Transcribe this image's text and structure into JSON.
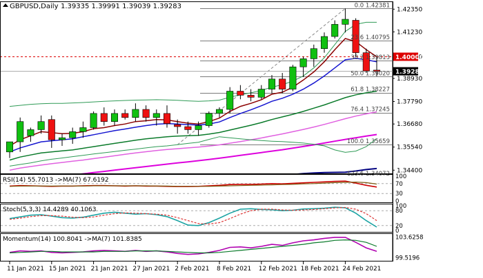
{
  "header": {
    "symbol": "GBPUSD,Daily",
    "ohlc": "1.39335 1.39991 1.39039 1.39283"
  },
  "colors": {
    "bull": "#10c010",
    "bear": "#ee1111",
    "ma_fast": "#8b0000",
    "ma_mid": "#1515d0",
    "ma_slow": "#0a7a2a",
    "ma_magenta1": "#e060e0",
    "ma_magenta2": "#dd00dd",
    "ma_navy": "#000080",
    "bb": "#2e9a55",
    "fib": "#7a7a7a",
    "price_tag": "#dd0000",
    "rsi_line": "#cc0000",
    "rsi_ma": "#7a5a10",
    "stoch_main": "#1aa3a3",
    "stoch_signal": "#dd3333",
    "momentum_line": "#b000b0",
    "momentum_ma": "#0a7a2a"
  },
  "chart_data": {
    "type": "candlestick",
    "symbol": "GBPUSD",
    "timeframe": "Daily",
    "y_ticks": [
      "1.42350",
      "1.41230",
      "1.40000",
      "1.38930",
      "1.37790",
      "1.36680",
      "1.35540",
      "1.34400"
    ],
    "ylim": [
      1.3424,
      1.427
    ],
    "x_labels": [
      "11 Jan 2021",
      "15 Jan 2021",
      "21 Jan 2021",
      "27 Jan 2021",
      "2 Feb 2021",
      "8 Feb 2021",
      "12 Feb 2021",
      "18 Feb 2021",
      "24 Feb 2021"
    ],
    "x_label_bars": [
      0,
      4,
      8,
      12,
      16,
      20,
      24,
      28,
      32
    ],
    "candles": [
      {
        "o": 1.353,
        "h": 1.358,
        "l": 1.35,
        "c": 1.358
      },
      {
        "o": 1.358,
        "h": 1.37,
        "l": 1.353,
        "c": 1.368
      },
      {
        "o": 1.361,
        "h": 1.365,
        "l": 1.358,
        "c": 1.364
      },
      {
        "o": 1.364,
        "h": 1.371,
        "l": 1.362,
        "c": 1.368
      },
      {
        "o": 1.369,
        "h": 1.371,
        "l": 1.355,
        "c": 1.359
      },
      {
        "o": 1.359,
        "h": 1.362,
        "l": 1.356,
        "c": 1.36
      },
      {
        "o": 1.36,
        "h": 1.365,
        "l": 1.357,
        "c": 1.363
      },
      {
        "o": 1.363,
        "h": 1.368,
        "l": 1.36,
        "c": 1.365
      },
      {
        "o": 1.365,
        "h": 1.373,
        "l": 1.364,
        "c": 1.372
      },
      {
        "o": 1.372,
        "h": 1.375,
        "l": 1.366,
        "c": 1.368
      },
      {
        "o": 1.368,
        "h": 1.374,
        "l": 1.366,
        "c": 1.372
      },
      {
        "o": 1.372,
        "h": 1.374,
        "l": 1.369,
        "c": 1.37
      },
      {
        "o": 1.37,
        "h": 1.377,
        "l": 1.368,
        "c": 1.374
      },
      {
        "o": 1.374,
        "h": 1.376,
        "l": 1.368,
        "c": 1.37
      },
      {
        "o": 1.37,
        "h": 1.374,
        "l": 1.366,
        "c": 1.372
      },
      {
        "o": 1.372,
        "h": 1.376,
        "l": 1.365,
        "c": 1.367
      },
      {
        "o": 1.3665,
        "h": 1.369,
        "l": 1.362,
        "c": 1.3655
      },
      {
        "o": 1.3655,
        "h": 1.368,
        "l": 1.362,
        "c": 1.364
      },
      {
        "o": 1.364,
        "h": 1.368,
        "l": 1.361,
        "c": 1.366
      },
      {
        "o": 1.366,
        "h": 1.373,
        "l": 1.365,
        "c": 1.372
      },
      {
        "o": 1.372,
        "h": 1.375,
        "l": 1.37,
        "c": 1.374
      },
      {
        "o": 1.374,
        "h": 1.385,
        "l": 1.372,
        "c": 1.383
      },
      {
        "o": 1.383,
        "h": 1.386,
        "l": 1.379,
        "c": 1.381
      },
      {
        "o": 1.381,
        "h": 1.384,
        "l": 1.378,
        "c": 1.38
      },
      {
        "o": 1.38,
        "h": 1.386,
        "l": 1.379,
        "c": 1.384
      },
      {
        "o": 1.384,
        "h": 1.391,
        "l": 1.382,
        "c": 1.389
      },
      {
        "o": 1.389,
        "h": 1.392,
        "l": 1.382,
        "c": 1.384
      },
      {
        "o": 1.384,
        "h": 1.396,
        "l": 1.383,
        "c": 1.395
      },
      {
        "o": 1.395,
        "h": 1.4,
        "l": 1.39,
        "c": 1.399
      },
      {
        "o": 1.399,
        "h": 1.406,
        "l": 1.395,
        "c": 1.404
      },
      {
        "o": 1.404,
        "h": 1.412,
        "l": 1.402,
        "c": 1.41
      },
      {
        "o": 1.41,
        "h": 1.418,
        "l": 1.409,
        "c": 1.416
      },
      {
        "o": 1.416,
        "h": 1.4238,
        "l": 1.412,
        "c": 1.4185
      },
      {
        "o": 1.418,
        "h": 1.419,
        "l": 1.4,
        "c": 1.402
      },
      {
        "o": 1.402,
        "h": 1.404,
        "l": 1.392,
        "c": 1.393
      },
      {
        "o": 1.3934,
        "h": 1.3999,
        "l": 1.3904,
        "c": 1.3928
      }
    ],
    "moving_averages": [
      {
        "key": "ma_fast",
        "values": [
          1.356,
          1.359,
          1.361,
          1.363,
          1.3625,
          1.362,
          1.3622,
          1.363,
          1.3645,
          1.365,
          1.366,
          1.3668,
          1.368,
          1.3684,
          1.369,
          1.3688,
          1.368,
          1.3672,
          1.3668,
          1.368,
          1.3697,
          1.373,
          1.3755,
          1.377,
          1.3788,
          1.3815,
          1.3825,
          1.385,
          1.3885,
          1.3925,
          1.3975,
          1.4035,
          1.409,
          1.4075,
          1.4035,
          1.4
        ]
      },
      {
        "key": "ma_mid",
        "values": [
          1.353,
          1.355,
          1.3565,
          1.358,
          1.3585,
          1.359,
          1.3595,
          1.3605,
          1.3615,
          1.3625,
          1.3635,
          1.3643,
          1.3652,
          1.366,
          1.3667,
          1.367,
          1.3668,
          1.3665,
          1.3663,
          1.3668,
          1.3678,
          1.37,
          1.372,
          1.3738,
          1.3758,
          1.378,
          1.3795,
          1.3815,
          1.384,
          1.387,
          1.3905,
          1.3945,
          1.3985,
          1.3992,
          1.3985,
          1.3975
        ]
      },
      {
        "key": "ma_slow",
        "values": [
          1.349,
          1.3505,
          1.3515,
          1.3525,
          1.353,
          1.3535,
          1.354,
          1.3548,
          1.3556,
          1.3564,
          1.3572,
          1.358,
          1.3588,
          1.3595,
          1.36,
          1.3605,
          1.3608,
          1.361,
          1.3612,
          1.3618,
          1.3626,
          1.3638,
          1.365,
          1.3662,
          1.3675,
          1.369,
          1.3703,
          1.3716,
          1.373,
          1.3746,
          1.3762,
          1.378,
          1.3798,
          1.3812,
          1.3822,
          1.383
        ]
      },
      {
        "key": "ma_magenta1",
        "values": [
          1.344,
          1.345,
          1.3458,
          1.3465,
          1.3472,
          1.3478,
          1.3484,
          1.349,
          1.3497,
          1.3504,
          1.3511,
          1.3518,
          1.3525,
          1.3531,
          1.3537,
          1.3542,
          1.3546,
          1.355,
          1.3554,
          1.3559,
          1.3565,
          1.3573,
          1.3581,
          1.359,
          1.3599,
          1.3609,
          1.3619,
          1.363,
          1.3641,
          1.3653,
          1.3666,
          1.368,
          1.3694,
          1.3707,
          1.3718,
          1.3728
        ]
      },
      {
        "key": "ma_magenta2",
        "values": [
          1.338,
          1.3386,
          1.3392,
          1.3398,
          1.3404,
          1.341,
          1.3416,
          1.3422,
          1.3428,
          1.3434,
          1.344,
          1.3446,
          1.3452,
          1.3458,
          1.3464,
          1.347,
          1.3476,
          1.3481,
          1.3487,
          1.3493,
          1.3499,
          1.3506,
          1.3513,
          1.352,
          1.3527,
          1.3534,
          1.3541,
          1.3549,
          1.3557,
          1.3565,
          1.3574,
          1.3583,
          1.3592,
          1.36,
          1.3608,
          1.3616
        ]
      },
      {
        "key": "ma_navy",
        "values": [
          1.316,
          1.317,
          1.318,
          1.319,
          1.32,
          1.321,
          1.322,
          1.323,
          1.324,
          1.325,
          1.326,
          1.327,
          1.328,
          1.329,
          1.33,
          1.331,
          1.332,
          1.333,
          1.334,
          1.335,
          1.336,
          1.337,
          1.338,
          1.339,
          1.34,
          1.3408,
          1.3414,
          1.3419,
          1.3423,
          1.3426,
          1.3428,
          1.3429,
          1.343,
          1.3436,
          1.3443,
          1.3448
        ]
      },
      {
        "key": "bb",
        "values": [
          1.3755,
          1.376,
          1.3765,
          1.3768,
          1.377,
          1.377,
          1.3772,
          1.3774,
          1.3777,
          1.378,
          1.3782,
          1.3784,
          1.3786,
          1.3787,
          1.3788,
          1.3787,
          1.3785,
          1.3782,
          1.378,
          1.3782,
          1.3786,
          1.38,
          1.3812,
          1.3822,
          1.3834,
          1.385,
          1.3862,
          1.388,
          1.3905,
          1.3945,
          1.3995,
          1.406,
          1.4125,
          1.416,
          1.417,
          1.417
        ]
      },
      {
        "key": "bb",
        "values": [
          1.346,
          1.3468,
          1.3476,
          1.3486,
          1.3494,
          1.35,
          1.3507,
          1.3513,
          1.352,
          1.3526,
          1.3532,
          1.3538,
          1.3544,
          1.355,
          1.3556,
          1.356,
          1.3566,
          1.3572,
          1.3578,
          1.3592,
          1.3605,
          1.36,
          1.3595,
          1.359,
          1.3586,
          1.3583,
          1.3581,
          1.3578,
          1.3574,
          1.3568,
          1.356,
          1.354,
          1.3528,
          1.3534,
          1.3556,
          1.3596
        ]
      }
    ],
    "fib_levels": [
      {
        "label": "0.0 1.42381",
        "v": 1.42381
      },
      {
        "label": "23.6 1.40795",
        "v": 1.40795
      },
      {
        "label": "38.2 1.39813",
        "v": 1.39813
      },
      {
        "label": "50.0 1.39020",
        "v": 1.3902
      },
      {
        "label": "61.8 1.38227",
        "v": 1.38227
      },
      {
        "label": "76.4 1.37245",
        "v": 1.37245
      },
      {
        "label": "100.0 1.35659",
        "v": 1.35659
      },
      {
        "label": "123.6 1.34072",
        "v": 1.34072
      }
    ],
    "fib_anchor": {
      "from_bar": 16,
      "from_v": 1.35659,
      "to_bar": 32,
      "to_v": 1.42381
    },
    "price_level": {
      "label": "1.40000",
      "v": 1.4
    },
    "current_price": {
      "label": "1.39283",
      "v": 1.39283
    },
    "rsi": {
      "label": "RSI(14) 55.7013 ->MA(7) 67.6192",
      "levels": [
        70,
        30
      ],
      "tick_labels": [
        "100",
        "70",
        "30",
        "0"
      ],
      "ylim": [
        0,
        100
      ],
      "rsi": [
        60,
        62,
        61,
        60,
        59,
        60,
        60,
        61,
        62,
        62,
        61,
        60,
        61,
        60,
        60,
        59,
        58,
        58,
        59,
        61,
        63,
        66,
        67,
        67,
        68,
        70,
        69,
        71,
        73,
        75,
        77,
        79,
        80,
        72,
        63,
        56
      ],
      "ma": [
        59,
        60,
        60,
        60,
        60,
        60,
        60,
        60,
        61,
        61,
        61,
        61,
        61,
        61,
        60,
        60,
        59,
        59,
        59,
        59,
        60,
        61,
        62,
        63,
        64,
        65,
        66,
        67,
        69,
        70,
        72,
        74,
        75,
        76,
        74,
        68
      ]
    },
    "stoch": {
      "label": "Stoch(5,3,3) 14.4289 40.1063",
      "levels": [
        80,
        20
      ],
      "tick_labels": [
        "100",
        "80",
        "20",
        "0"
      ],
      "ylim": [
        0,
        100
      ],
      "main": [
        48,
        55,
        62,
        64,
        58,
        52,
        50,
        54,
        62,
        70,
        74,
        70,
        66,
        68,
        64,
        56,
        40,
        22,
        20,
        32,
        50,
        70,
        86,
        88,
        85,
        84,
        80,
        82,
        87,
        88,
        90,
        94,
        92,
        70,
        40,
        14
      ],
      "signal": [
        45,
        50,
        56,
        60,
        60,
        58,
        54,
        52,
        55,
        62,
        68,
        71,
        70,
        68,
        66,
        62,
        52,
        40,
        28,
        26,
        32,
        48,
        66,
        80,
        86,
        86,
        83,
        82,
        83,
        85,
        88,
        91,
        93,
        86,
        68,
        40
      ]
    },
    "momentum": {
      "label": "Momentum(14) 100.8041 ->MA(7) 101.8385",
      "tick_labels": [
        "103.6258",
        "99.5196"
      ],
      "ylim": [
        99.2,
        104.0
      ],
      "mom": [
        100.6,
        100.9,
        100.8,
        100.9,
        100.6,
        100.5,
        100.6,
        100.7,
        100.9,
        101.0,
        100.9,
        100.8,
        101.0,
        100.8,
        100.9,
        100.7,
        100.4,
        100.2,
        100.3,
        100.6,
        101.0,
        101.6,
        101.7,
        101.5,
        101.8,
        102.2,
        102.0,
        102.5,
        102.9,
        103.1,
        103.4,
        103.6,
        103.6,
        102.6,
        101.5,
        100.8
      ],
      "ma": [
        100.5,
        100.6,
        100.7,
        100.8,
        100.8,
        100.7,
        100.7,
        100.7,
        100.7,
        100.8,
        100.8,
        100.8,
        100.9,
        100.9,
        100.9,
        100.8,
        100.7,
        100.6,
        100.5,
        100.5,
        100.6,
        100.8,
        101.0,
        101.2,
        101.4,
        101.6,
        101.8,
        102.0,
        102.2,
        102.5,
        102.7,
        103.0,
        103.1,
        103.0,
        102.6,
        101.8
      ]
    }
  }
}
